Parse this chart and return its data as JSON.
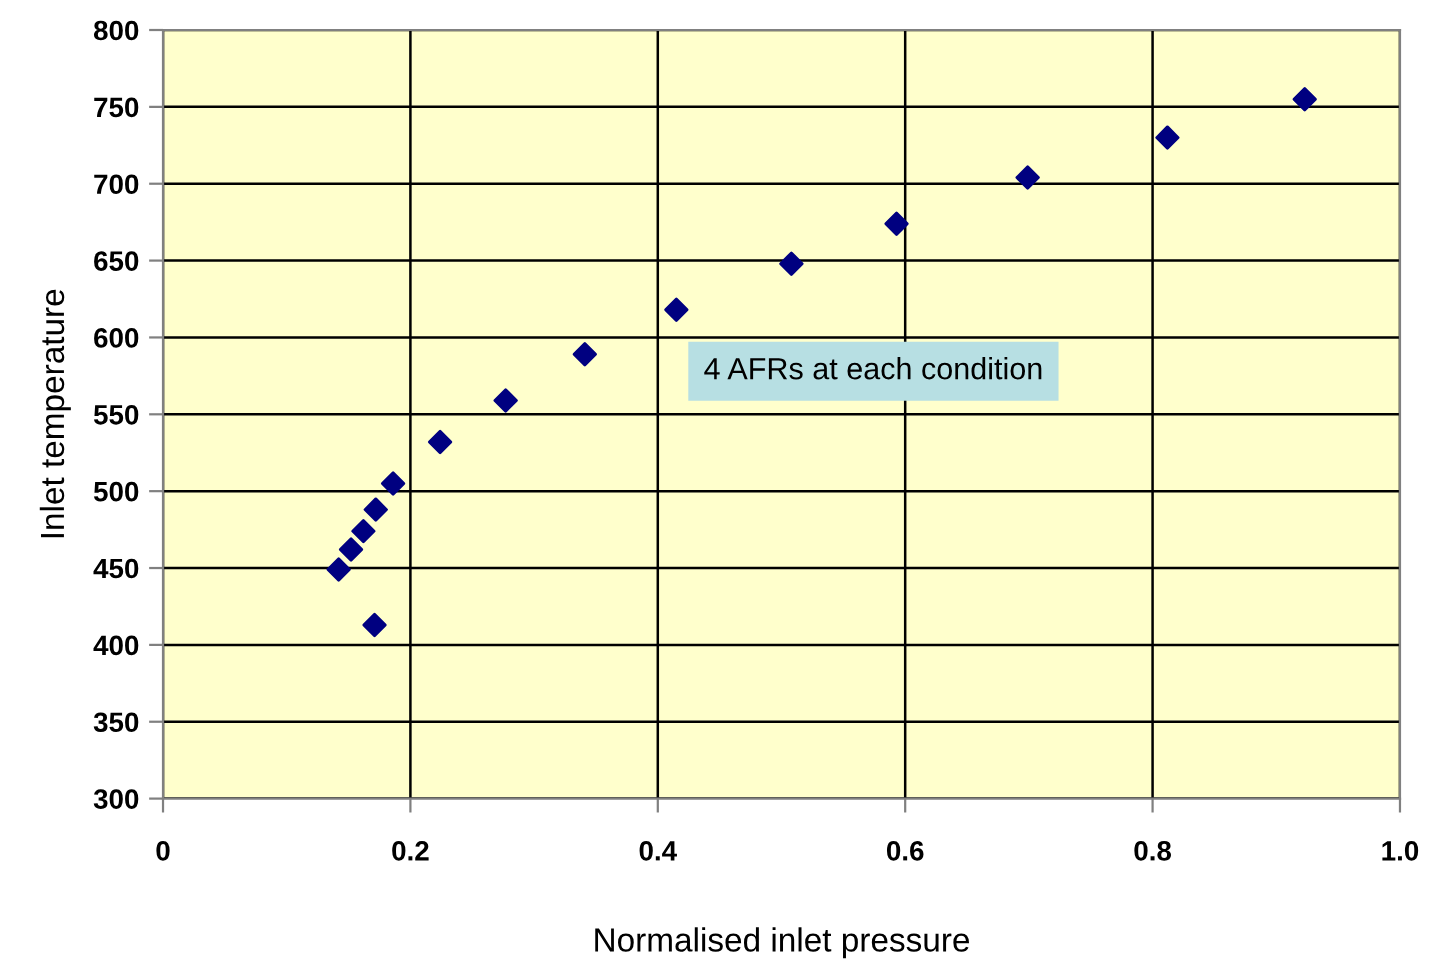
{
  "chart_data": {
    "type": "scatter",
    "xlabel": "Normalised inlet pressure",
    "ylabel": "Inlet temperature",
    "x": [
      0.142,
      0.152,
      0.162,
      0.172,
      0.186,
      0.171,
      0.224,
      0.277,
      0.341,
      0.415,
      0.508,
      0.593,
      0.699,
      0.812,
      0.923
    ],
    "series": [
      {
        "color": "#000080",
        "values": [
          449,
          462,
          474,
          488,
          505,
          413,
          532,
          559,
          589,
          618,
          648,
          674,
          704,
          730,
          755
        ]
      }
    ],
    "marker": "diamond",
    "xlim": [
      0,
      1.0
    ],
    "xticks": [
      0,
      0.2,
      0.4,
      0.6,
      0.8,
      {
        "value": 1.0,
        "label": "1.0"
      }
    ],
    "ylim": [
      300,
      800
    ],
    "yticks": [
      300,
      350,
      400,
      450,
      500,
      550,
      600,
      650,
      700,
      750,
      800
    ],
    "grid": true,
    "annotations": [
      "4 AFRs at each condition"
    ]
  }
}
